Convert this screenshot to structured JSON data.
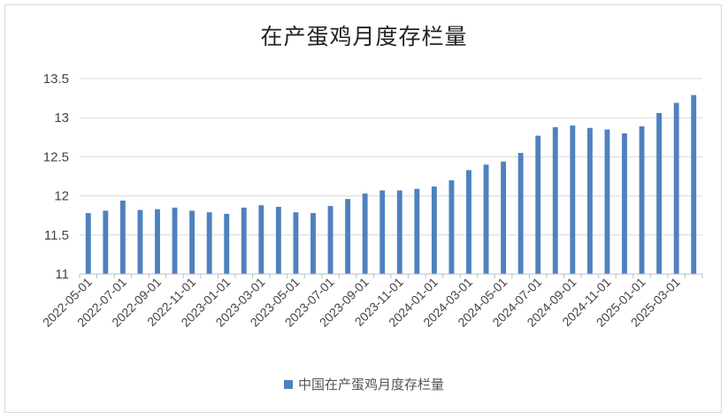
{
  "chart_data": {
    "type": "bar",
    "title": "在产蛋鸡月度存栏量",
    "xlabel": "",
    "ylabel": "",
    "ylim": [
      11,
      13.5
    ],
    "yticks": [
      11,
      11.5,
      12,
      12.5,
      13,
      13.5
    ],
    "ytick_labels": [
      "11",
      "11.5",
      "12",
      "12.5",
      "13",
      "13.5"
    ],
    "grid": true,
    "legend_position": "bottom",
    "color": "#4f81bd",
    "categories": [
      "2022-05-01",
      "2022-06-01",
      "2022-07-01",
      "2022-08-01",
      "2022-09-01",
      "2022-10-01",
      "2022-11-01",
      "2022-12-01",
      "2023-01-01",
      "2023-02-01",
      "2023-03-01",
      "2023-04-01",
      "2023-05-01",
      "2023-06-01",
      "2023-07-01",
      "2023-08-01",
      "2023-09-01",
      "2023-10-01",
      "2023-11-01",
      "2023-12-01",
      "2024-01-01",
      "2024-02-01",
      "2024-03-01",
      "2024-04-01",
      "2024-05-01",
      "2024-06-01",
      "2024-07-01",
      "2024-08-01",
      "2024-09-01",
      "2024-10-01",
      "2024-11-01",
      "2024-12-01",
      "2025-01-01",
      "2025-02-01",
      "2025-03-01",
      "2025-04-01"
    ],
    "x_tick_labels": [
      "2022-05-01",
      "2022-07-01",
      "2022-09-01",
      "2022-11-01",
      "2023-01-01",
      "2023-03-01",
      "2023-05-01",
      "2023-07-01",
      "2023-09-01",
      "2023-11-01",
      "2024-01-01",
      "2024-03-01",
      "2024-05-01",
      "2024-07-01",
      "2024-09-01",
      "2024-11-01",
      "2025-01-01",
      "2025-03-01"
    ],
    "series": [
      {
        "name": "中国在产蛋鸡月度存栏量",
        "values": [
          11.78,
          11.81,
          11.94,
          11.82,
          11.83,
          11.85,
          11.81,
          11.79,
          11.77,
          11.85,
          11.88,
          11.86,
          11.79,
          11.78,
          11.87,
          11.96,
          12.03,
          12.07,
          12.07,
          12.09,
          12.12,
          12.2,
          12.33,
          12.4,
          12.44,
          12.55,
          12.77,
          12.88,
          12.9,
          12.87,
          12.85,
          12.8,
          12.89,
          13.06,
          13.19,
          13.29
        ]
      }
    ]
  }
}
